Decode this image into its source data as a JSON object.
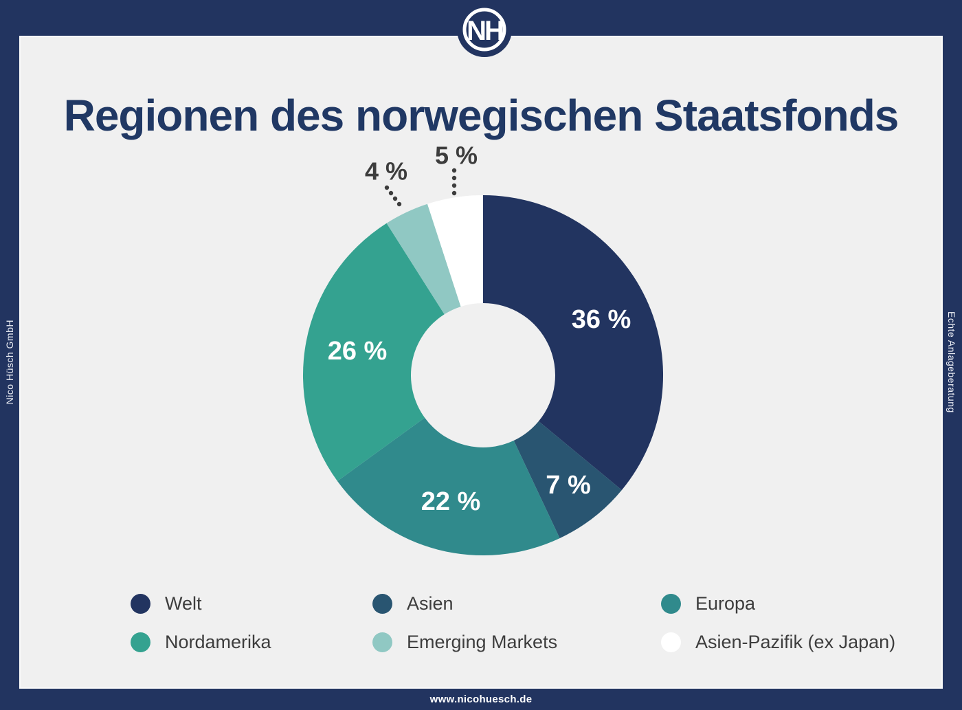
{
  "meta": {
    "page_bg": "#f0f0f0",
    "frame_color": "#223460"
  },
  "brand": {
    "monogram": "NH",
    "left_edge_text": "Nico Hüsch GmbH",
    "right_edge_text": "Echte Anlageberatung",
    "footer_url": "www.nicohuesch.de"
  },
  "title": "Regionen des norwegischen Staatsfonds",
  "chart_data": {
    "type": "pie",
    "subtype": "donut",
    "title": "Regionen des norwegischen Staatsfonds",
    "categories": [
      "Welt",
      "Asien",
      "Europa",
      "Nordamerika",
      "Emerging Markets",
      "Asien-Pazifik (ex Japan)"
    ],
    "values": [
      36,
      7,
      22,
      26,
      4,
      5
    ],
    "unit": "%",
    "value_labels": [
      "36 %",
      "7 %",
      "22 %",
      "26 %",
      "4 %",
      "5 %"
    ],
    "slice_colors": [
      "#223460",
      "#295571",
      "#308a8c",
      "#34a290",
      "#90c8c3",
      "#ffffff"
    ],
    "start_angle_deg": 0,
    "direction": "clockwise",
    "donut_hole_ratio": 0.4,
    "inside_label_color": "#ffffff",
    "outside_label_color": "#3d3d3d",
    "grid": false,
    "legend_position": "bottom",
    "legend_columns": 3
  }
}
